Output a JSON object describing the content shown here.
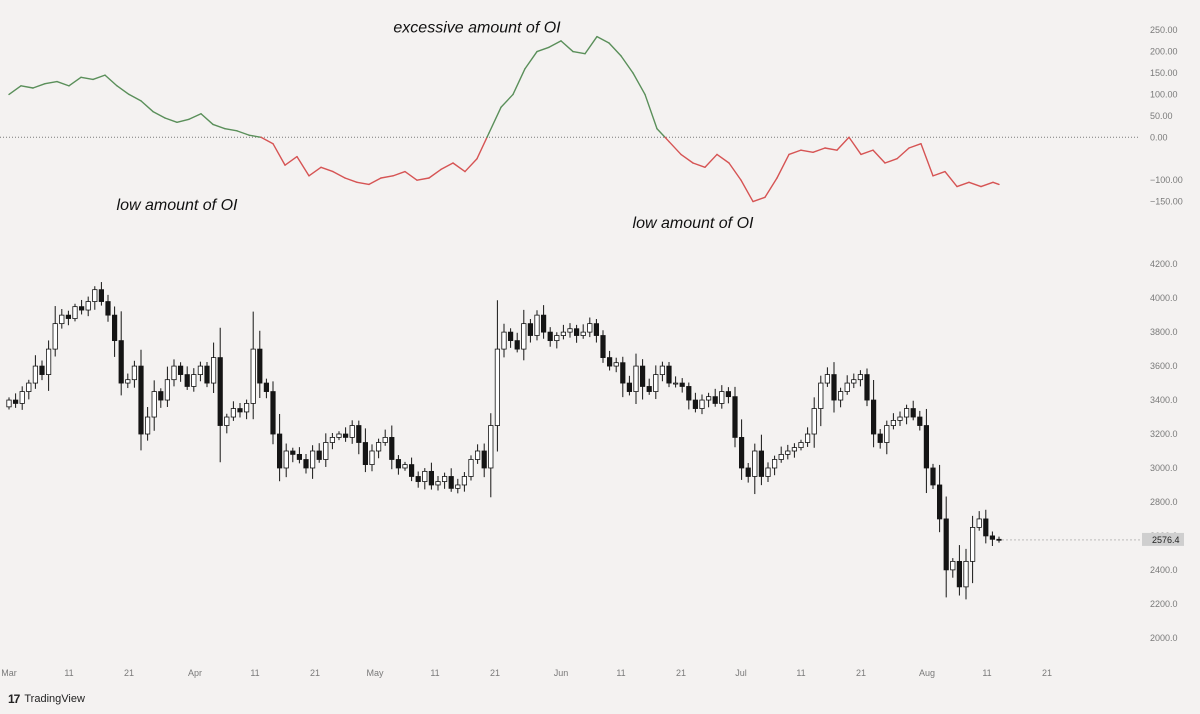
{
  "brand": {
    "name": "TradingView",
    "logo_icon": "tradingview-logo-icon"
  },
  "colors": {
    "background": "#f4f2f1",
    "oi_positive": "#5a8f5a",
    "oi_negative": "#d65454",
    "candle_up": "#ffffff",
    "candle_down": "#151515",
    "wick": "#151515"
  },
  "chart_data": [
    {
      "type": "line",
      "name": "oi-oscillator",
      "yticks": [
        "250.00",
        "200.00",
        "150.00",
        "100.00",
        "50.00",
        "0.00",
        "−100.00",
        "−150.00"
      ],
      "ytick_values": [
        250,
        200,
        150,
        100,
        50,
        0,
        -100,
        -150
      ],
      "ylim": [
        -165,
        262
      ],
      "zero_line": true,
      "annotations": [
        {
          "text": "excessive amount of OI",
          "day": 78,
          "value": 245
        },
        {
          "text": "low amount of OI",
          "day": 28,
          "value": -170
        },
        {
          "text": "low amount of OI",
          "day": 114,
          "value": -212
        }
      ],
      "x_days": [
        0,
        2,
        4,
        6,
        8,
        10,
        12,
        14,
        16,
        18,
        20,
        22,
        24,
        26,
        28,
        30,
        32,
        34,
        36,
        38,
        40,
        42,
        44,
        46,
        48,
        50,
        52,
        54,
        56,
        58,
        60,
        62,
        64,
        66,
        68,
        70,
        72,
        74,
        76,
        78,
        80,
        82,
        84,
        86,
        88,
        90,
        92,
        94,
        96,
        98,
        100,
        102,
        104,
        106,
        108,
        110,
        112,
        114,
        116,
        118,
        120,
        122,
        124,
        126,
        128,
        130,
        132,
        134,
        136,
        138,
        140,
        142,
        144,
        146,
        148,
        150,
        152,
        154,
        156,
        158,
        160,
        162,
        164,
        165
      ],
      "values": [
        100,
        120,
        115,
        125,
        130,
        120,
        140,
        135,
        145,
        120,
        100,
        85,
        60,
        45,
        35,
        42,
        55,
        30,
        20,
        15,
        5,
        0,
        -15,
        -65,
        -45,
        -90,
        -70,
        -80,
        -95,
        -105,
        -110,
        -95,
        -90,
        -80,
        -100,
        -95,
        -75,
        -60,
        -80,
        -50,
        10,
        70,
        100,
        160,
        200,
        210,
        225,
        200,
        195,
        235,
        220,
        190,
        150,
        100,
        20,
        -10,
        -40,
        -60,
        -70,
        -40,
        -60,
        -100,
        -150,
        -140,
        -95,
        -40,
        -30,
        -35,
        -25,
        -30,
        0,
        -40,
        -30,
        -60,
        -50,
        -25,
        -15,
        -90,
        -80,
        -115,
        -105,
        -115,
        -105,
        -110
      ]
    },
    {
      "type": "candlestick",
      "name": "price",
      "yticks": [
        "4200.0",
        "4000.0",
        "3800.0",
        "3600.0",
        "3400.0",
        "3200.0",
        "3000.0",
        "2800.0",
        "2600.0",
        "2400.0",
        "2200.0",
        "2000.0"
      ],
      "ytick_values": [
        4200,
        4000,
        3800,
        3600,
        3400,
        3200,
        3000,
        2800,
        2600,
        2400,
        2200,
        2000
      ],
      "ylim": [
        1940,
        4260
      ],
      "last_price": {
        "label": "2576.4",
        "value": 2576.4
      },
      "x_ticks": [
        {
          "label": "Mar",
          "day": 0
        },
        {
          "label": "11",
          "day": 10
        },
        {
          "label": "21",
          "day": 20
        },
        {
          "label": "Apr",
          "day": 31
        },
        {
          "label": "11",
          "day": 41
        },
        {
          "label": "21",
          "day": 51
        },
        {
          "label": "May",
          "day": 61
        },
        {
          "label": "11",
          "day": 71
        },
        {
          "label": "21",
          "day": 81
        },
        {
          "label": "Jun",
          "day": 92
        },
        {
          "label": "11",
          "day": 102
        },
        {
          "label": "21",
          "day": 112
        },
        {
          "label": "Jul",
          "day": 122
        },
        {
          "label": "11",
          "day": 132
        },
        {
          "label": "21",
          "day": 142
        },
        {
          "label": "Aug",
          "day": 153
        },
        {
          "label": "11",
          "day": 163
        },
        {
          "label": "21",
          "day": 173
        }
      ],
      "close": [
        3400,
        3380,
        3450,
        3500,
        3600,
        3550,
        3700,
        3850,
        3900,
        3880,
        3950,
        3930,
        3980,
        4050,
        3980,
        3900,
        3750,
        3500,
        3520,
        3600,
        3200,
        3300,
        3450,
        3400,
        3520,
        3600,
        3550,
        3480,
        3550,
        3600,
        3500,
        3650,
        3250,
        3300,
        3350,
        3330,
        3380,
        3700,
        3500,
        3450,
        3200,
        3000,
        3100,
        3080,
        3050,
        3000,
        3100,
        3050,
        3150,
        3180,
        3200,
        3180,
        3250,
        3150,
        3020,
        3100,
        3150,
        3180,
        3050,
        3000,
        3020,
        2950,
        2920,
        2980,
        2900,
        2920,
        2950,
        2880,
        2900,
        2950,
        3050,
        3100,
        3000,
        3250,
        3700,
        3800,
        3750,
        3700,
        3850,
        3780,
        3900,
        3800,
        3750,
        3780,
        3800,
        3820,
        3780,
        3800,
        3850,
        3780,
        3650,
        3600,
        3620,
        3500,
        3450,
        3600,
        3480,
        3450,
        3550,
        3600,
        3500,
        3500,
        3480,
        3400,
        3350,
        3400,
        3420,
        3380,
        3450,
        3420,
        3180,
        3000,
        2950,
        3100,
        2950,
        3000,
        3050,
        3080,
        3100,
        3120,
        3150,
        3200,
        3350,
        3500,
        3550,
        3400,
        3450,
        3500,
        3520,
        3550,
        3400,
        3200,
        3150,
        3250,
        3280,
        3300,
        3350,
        3300,
        3250,
        3000,
        2900,
        2700,
        2400,
        2450,
        2300,
        2450,
        2650,
        2700,
        2600,
        2580,
        2576.4
      ]
    }
  ]
}
